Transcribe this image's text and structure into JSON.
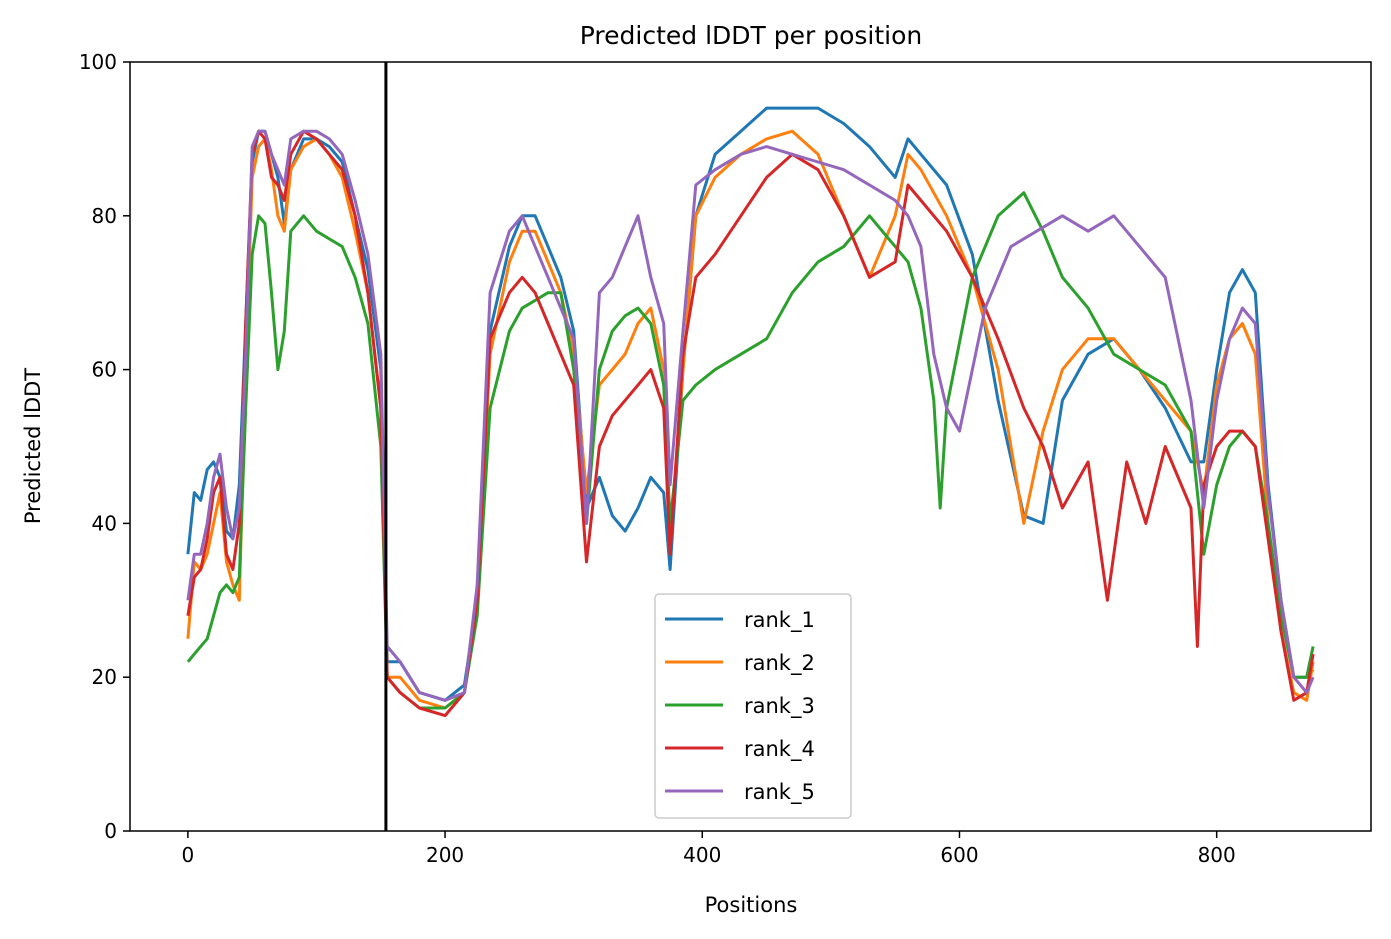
{
  "chart_data": {
    "type": "line",
    "title": "Predicted lDDT per position",
    "xlabel": "Positions",
    "ylabel": "Predicted lDDT",
    "xlim": [
      -45,
      920
    ],
    "ylim": [
      0,
      100
    ],
    "xticks": [
      0,
      200,
      400,
      600,
      800
    ],
    "yticks": [
      0,
      20,
      40,
      60,
      80,
      100
    ],
    "grid": false,
    "legend_position": "lower-center",
    "vline_x": 154,
    "vline_color": "#000000",
    "series": [
      {
        "name": "rank_1",
        "color": "#1f77b4",
        "x": [
          0,
          5,
          10,
          15,
          20,
          25,
          30,
          35,
          40,
          45,
          50,
          55,
          60,
          65,
          70,
          75,
          80,
          90,
          100,
          110,
          120,
          130,
          140,
          150,
          155,
          165,
          180,
          200,
          215,
          225,
          235,
          250,
          260,
          270,
          280,
          290,
          300,
          310,
          320,
          330,
          340,
          350,
          360,
          370,
          375,
          385,
          395,
          410,
          430,
          450,
          470,
          490,
          510,
          530,
          550,
          560,
          570,
          590,
          610,
          630,
          650,
          665,
          680,
          700,
          720,
          740,
          760,
          780,
          790,
          800,
          810,
          820,
          830,
          840,
          850,
          860,
          870,
          875
        ],
        "y": [
          36,
          44,
          43,
          47,
          48,
          46,
          39,
          38,
          45,
          66,
          87,
          91,
          91,
          88,
          85,
          79,
          86,
          90,
          90,
          89,
          87,
          80,
          73,
          60,
          22,
          22,
          18,
          17,
          19,
          30,
          65,
          76,
          80,
          80,
          76,
          72,
          65,
          42,
          46,
          41,
          39,
          42,
          46,
          44,
          34,
          60,
          80,
          88,
          91,
          94,
          94,
          94,
          92,
          89,
          85,
          90,
          88,
          84,
          75,
          56,
          41,
          40,
          56,
          62,
          64,
          60,
          55,
          48,
          48,
          60,
          70,
          73,
          70,
          45,
          30,
          20,
          20,
          21
        ]
      },
      {
        "name": "rank_2",
        "color": "#ff7f0e",
        "x": [
          0,
          5,
          10,
          15,
          20,
          25,
          30,
          35,
          40,
          45,
          50,
          55,
          60,
          65,
          70,
          75,
          80,
          90,
          100,
          110,
          120,
          130,
          140,
          150,
          155,
          165,
          180,
          200,
          215,
          225,
          235,
          250,
          260,
          270,
          280,
          290,
          300,
          310,
          320,
          330,
          340,
          350,
          360,
          370,
          375,
          385,
          395,
          410,
          430,
          450,
          470,
          490,
          510,
          530,
          550,
          560,
          570,
          590,
          610,
          630,
          650,
          665,
          680,
          700,
          720,
          740,
          760,
          780,
          790,
          800,
          810,
          820,
          830,
          840,
          850,
          860,
          870,
          875
        ],
        "y": [
          25,
          35,
          34,
          36,
          40,
          44,
          35,
          32,
          30,
          60,
          85,
          89,
          90,
          86,
          80,
          78,
          86,
          89,
          90,
          88,
          85,
          78,
          70,
          55,
          20,
          20,
          17,
          16,
          18,
          30,
          62,
          74,
          78,
          78,
          74,
          70,
          62,
          44,
          58,
          60,
          62,
          66,
          68,
          60,
          38,
          60,
          80,
          85,
          88,
          90,
          91,
          88,
          80,
          72,
          80,
          88,
          86,
          80,
          72,
          60,
          40,
          52,
          60,
          64,
          64,
          60,
          56,
          52,
          44,
          58,
          64,
          66,
          62,
          40,
          26,
          18,
          17,
          22
        ]
      },
      {
        "name": "rank_3",
        "color": "#2ca02c",
        "x": [
          0,
          5,
          10,
          15,
          20,
          25,
          30,
          35,
          40,
          45,
          50,
          55,
          60,
          65,
          70,
          75,
          80,
          90,
          100,
          110,
          120,
          130,
          140,
          150,
          155,
          165,
          180,
          200,
          215,
          225,
          235,
          250,
          260,
          270,
          280,
          290,
          300,
          310,
          320,
          330,
          340,
          350,
          360,
          370,
          375,
          385,
          395,
          410,
          430,
          450,
          470,
          490,
          510,
          530,
          550,
          560,
          570,
          580,
          585,
          590,
          610,
          630,
          650,
          665,
          680,
          700,
          720,
          740,
          760,
          780,
          790,
          800,
          810,
          820,
          830,
          840,
          850,
          860,
          870,
          875
        ],
        "y": [
          22,
          23,
          24,
          25,
          28,
          31,
          32,
          31,
          33,
          55,
          75,
          80,
          79,
          70,
          60,
          65,
          78,
          80,
          78,
          77,
          76,
          72,
          66,
          50,
          20,
          18,
          16,
          16,
          18,
          28,
          55,
          65,
          68,
          69,
          70,
          70,
          60,
          40,
          60,
          65,
          67,
          68,
          66,
          58,
          40,
          56,
          58,
          60,
          62,
          64,
          70,
          74,
          76,
          80,
          76,
          74,
          68,
          56,
          42,
          55,
          72,
          80,
          83,
          78,
          72,
          68,
          62,
          60,
          58,
          52,
          36,
          45,
          50,
          52,
          50,
          40,
          28,
          20,
          20,
          24
        ]
      },
      {
        "name": "rank_4",
        "color": "#d62728",
        "x": [
          0,
          5,
          10,
          15,
          20,
          25,
          30,
          35,
          40,
          45,
          50,
          55,
          60,
          65,
          70,
          75,
          80,
          90,
          100,
          110,
          120,
          130,
          140,
          150,
          155,
          165,
          180,
          200,
          215,
          225,
          235,
          250,
          260,
          270,
          280,
          290,
          300,
          310,
          320,
          330,
          340,
          350,
          360,
          370,
          375,
          385,
          395,
          410,
          430,
          450,
          470,
          490,
          510,
          530,
          550,
          560,
          570,
          590,
          610,
          630,
          650,
          665,
          680,
          700,
          715,
          730,
          745,
          760,
          780,
          785,
          790,
          800,
          810,
          820,
          830,
          840,
          850,
          860,
          870,
          875
        ],
        "y": [
          28,
          33,
          34,
          38,
          44,
          46,
          36,
          34,
          40,
          66,
          88,
          91,
          90,
          85,
          84,
          82,
          88,
          91,
          90,
          88,
          86,
          80,
          70,
          55,
          20,
          18,
          16,
          15,
          18,
          30,
          64,
          70,
          72,
          70,
          66,
          62,
          58,
          35,
          50,
          54,
          56,
          58,
          60,
          55,
          36,
          62,
          72,
          75,
          80,
          85,
          88,
          86,
          80,
          72,
          74,
          84,
          82,
          78,
          72,
          64,
          55,
          50,
          42,
          48,
          30,
          48,
          40,
          50,
          42,
          24,
          45,
          50,
          52,
          52,
          50,
          38,
          26,
          17,
          18,
          23
        ]
      },
      {
        "name": "rank_5",
        "color": "#9467bd",
        "x": [
          0,
          5,
          10,
          15,
          20,
          25,
          30,
          35,
          40,
          45,
          50,
          55,
          60,
          65,
          70,
          75,
          80,
          90,
          100,
          110,
          120,
          130,
          140,
          150,
          155,
          165,
          180,
          200,
          215,
          225,
          235,
          250,
          260,
          270,
          280,
          290,
          300,
          310,
          320,
          330,
          340,
          350,
          360,
          370,
          375,
          385,
          395,
          410,
          430,
          450,
          470,
          490,
          510,
          530,
          550,
          560,
          570,
          580,
          590,
          600,
          620,
          640,
          660,
          680,
          700,
          720,
          740,
          760,
          780,
          790,
          800,
          810,
          820,
          830,
          840,
          850,
          860,
          870,
          875
        ],
        "y": [
          30,
          36,
          36,
          40,
          46,
          49,
          42,
          38,
          42,
          62,
          89,
          91,
          91,
          88,
          86,
          84,
          90,
          91,
          91,
          90,
          88,
          82,
          75,
          62,
          24,
          22,
          18,
          17,
          18,
          32,
          70,
          78,
          80,
          76,
          72,
          68,
          64,
          40,
          70,
          72,
          76,
          80,
          72,
          66,
          45,
          65,
          84,
          86,
          88,
          89,
          88,
          87,
          86,
          84,
          82,
          80,
          76,
          62,
          55,
          52,
          68,
          76,
          78,
          80,
          78,
          80,
          76,
          72,
          56,
          42,
          56,
          64,
          68,
          66,
          44,
          30,
          20,
          18,
          20
        ]
      }
    ]
  }
}
